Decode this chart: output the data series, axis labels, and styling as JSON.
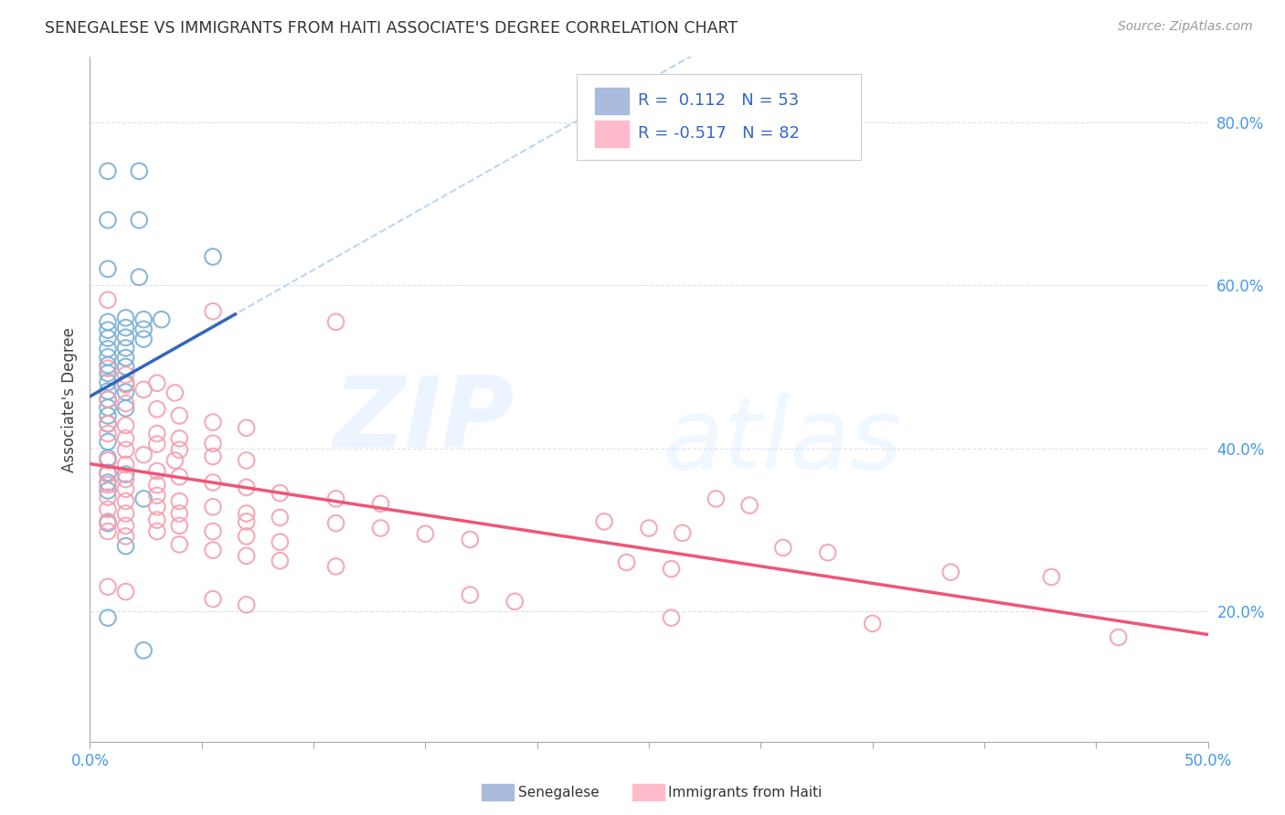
{
  "title": "SENEGALESE VS IMMIGRANTS FROM HAITI ASSOCIATE'S DEGREE CORRELATION CHART",
  "source": "Source: ZipAtlas.com",
  "ylabel": "Associate's Degree",
  "y_ticks": [
    0.2,
    0.4,
    0.6,
    0.8
  ],
  "y_tick_labels": [
    "20.0%",
    "40.0%",
    "60.0%",
    "80.0%"
  ],
  "x_range": [
    0.0,
    0.5
  ],
  "y_range": [
    0.04,
    0.88
  ],
  "blue_color": "#7BAFD4",
  "pink_color": "#F4A0B0",
  "blue_line_color": "#3366BB",
  "pink_line_color": "#EE5577",
  "dashed_line_color": "#AACCEE",
  "senegalese_points": [
    [
      0.008,
      0.74
    ],
    [
      0.022,
      0.74
    ],
    [
      0.008,
      0.68
    ],
    [
      0.022,
      0.68
    ],
    [
      0.008,
      0.62
    ],
    [
      0.022,
      0.61
    ],
    [
      0.055,
      0.635
    ],
    [
      0.008,
      0.555
    ],
    [
      0.016,
      0.56
    ],
    [
      0.024,
      0.558
    ],
    [
      0.032,
      0.558
    ],
    [
      0.008,
      0.545
    ],
    [
      0.016,
      0.548
    ],
    [
      0.024,
      0.546
    ],
    [
      0.008,
      0.535
    ],
    [
      0.016,
      0.536
    ],
    [
      0.024,
      0.534
    ],
    [
      0.008,
      0.522
    ],
    [
      0.016,
      0.523
    ],
    [
      0.008,
      0.512
    ],
    [
      0.016,
      0.511
    ],
    [
      0.008,
      0.502
    ],
    [
      0.016,
      0.5
    ],
    [
      0.008,
      0.492
    ],
    [
      0.008,
      0.481
    ],
    [
      0.016,
      0.48
    ],
    [
      0.008,
      0.47
    ],
    [
      0.016,
      0.469
    ],
    [
      0.008,
      0.46
    ],
    [
      0.008,
      0.45
    ],
    [
      0.016,
      0.449
    ],
    [
      0.008,
      0.44
    ],
    [
      0.008,
      0.43
    ],
    [
      0.008,
      0.408
    ],
    [
      0.008,
      0.388
    ],
    [
      0.008,
      0.37
    ],
    [
      0.016,
      0.368
    ],
    [
      0.008,
      0.358
    ],
    [
      0.008,
      0.348
    ],
    [
      0.024,
      0.338
    ],
    [
      0.008,
      0.308
    ],
    [
      0.016,
      0.28
    ],
    [
      0.008,
      0.192
    ],
    [
      0.024,
      0.152
    ]
  ],
  "haiti_points": [
    [
      0.008,
      0.582
    ],
    [
      0.055,
      0.568
    ],
    [
      0.11,
      0.555
    ],
    [
      0.008,
      0.498
    ],
    [
      0.016,
      0.49
    ],
    [
      0.03,
      0.48
    ],
    [
      0.016,
      0.478
    ],
    [
      0.024,
      0.472
    ],
    [
      0.038,
      0.468
    ],
    [
      0.008,
      0.46
    ],
    [
      0.016,
      0.455
    ],
    [
      0.03,
      0.448
    ],
    [
      0.04,
      0.44
    ],
    [
      0.055,
      0.432
    ],
    [
      0.07,
      0.425
    ],
    [
      0.008,
      0.43
    ],
    [
      0.016,
      0.428
    ],
    [
      0.03,
      0.418
    ],
    [
      0.04,
      0.412
    ],
    [
      0.055,
      0.406
    ],
    [
      0.008,
      0.418
    ],
    [
      0.016,
      0.412
    ],
    [
      0.03,
      0.405
    ],
    [
      0.04,
      0.398
    ],
    [
      0.055,
      0.39
    ],
    [
      0.07,
      0.385
    ],
    [
      0.016,
      0.398
    ],
    [
      0.024,
      0.392
    ],
    [
      0.038,
      0.385
    ],
    [
      0.008,
      0.385
    ],
    [
      0.016,
      0.38
    ],
    [
      0.03,
      0.372
    ],
    [
      0.04,
      0.365
    ],
    [
      0.055,
      0.358
    ],
    [
      0.07,
      0.352
    ],
    [
      0.085,
      0.345
    ],
    [
      0.11,
      0.338
    ],
    [
      0.13,
      0.332
    ],
    [
      0.008,
      0.368
    ],
    [
      0.016,
      0.362
    ],
    [
      0.03,
      0.355
    ],
    [
      0.008,
      0.355
    ],
    [
      0.016,
      0.35
    ],
    [
      0.03,
      0.342
    ],
    [
      0.04,
      0.335
    ],
    [
      0.055,
      0.328
    ],
    [
      0.07,
      0.32
    ],
    [
      0.085,
      0.315
    ],
    [
      0.11,
      0.308
    ],
    [
      0.13,
      0.302
    ],
    [
      0.15,
      0.295
    ],
    [
      0.17,
      0.288
    ],
    [
      0.008,
      0.34
    ],
    [
      0.016,
      0.335
    ],
    [
      0.03,
      0.328
    ],
    [
      0.04,
      0.32
    ],
    [
      0.07,
      0.31
    ],
    [
      0.008,
      0.325
    ],
    [
      0.016,
      0.32
    ],
    [
      0.03,
      0.312
    ],
    [
      0.04,
      0.305
    ],
    [
      0.055,
      0.298
    ],
    [
      0.07,
      0.292
    ],
    [
      0.085,
      0.285
    ],
    [
      0.008,
      0.31
    ],
    [
      0.016,
      0.305
    ],
    [
      0.03,
      0.298
    ],
    [
      0.008,
      0.298
    ],
    [
      0.016,
      0.292
    ],
    [
      0.04,
      0.282
    ],
    [
      0.055,
      0.275
    ],
    [
      0.07,
      0.268
    ],
    [
      0.085,
      0.262
    ],
    [
      0.11,
      0.255
    ],
    [
      0.28,
      0.338
    ],
    [
      0.295,
      0.33
    ],
    [
      0.23,
      0.31
    ],
    [
      0.25,
      0.302
    ],
    [
      0.265,
      0.296
    ],
    [
      0.31,
      0.278
    ],
    [
      0.33,
      0.272
    ],
    [
      0.385,
      0.248
    ],
    [
      0.43,
      0.242
    ],
    [
      0.24,
      0.26
    ],
    [
      0.26,
      0.252
    ],
    [
      0.17,
      0.22
    ],
    [
      0.19,
      0.212
    ],
    [
      0.26,
      0.192
    ],
    [
      0.35,
      0.185
    ],
    [
      0.46,
      0.168
    ],
    [
      0.008,
      0.23
    ],
    [
      0.016,
      0.224
    ],
    [
      0.055,
      0.215
    ],
    [
      0.07,
      0.208
    ]
  ],
  "sen_R": 0.112,
  "haiti_R": -0.517,
  "sen_intercept": 0.46,
  "sen_slope_full": 1.2,
  "haiti_intercept": 0.455,
  "haiti_slope_full": -0.58
}
